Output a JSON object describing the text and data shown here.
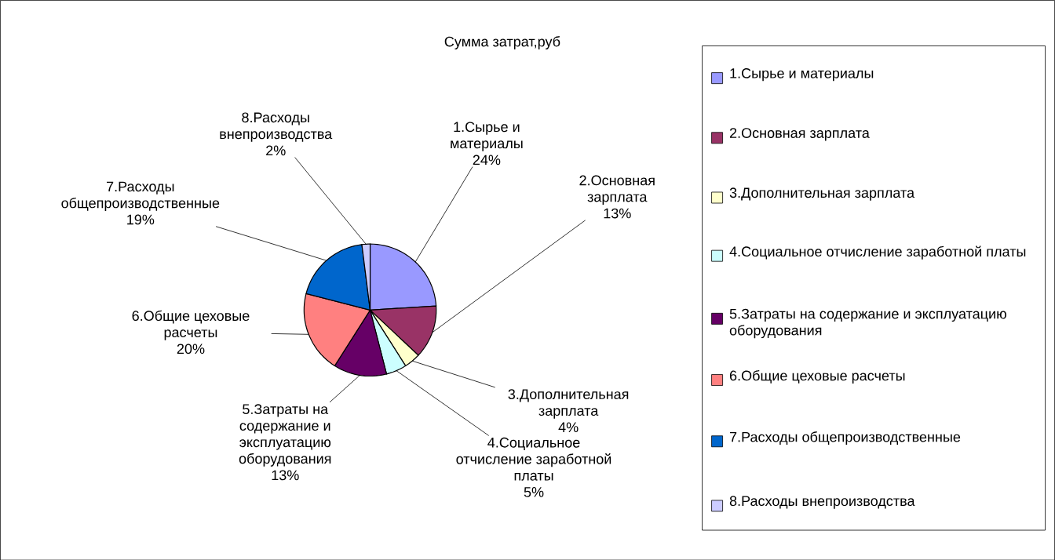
{
  "chart_data": {
    "type": "pie",
    "title": "Сумма затрат,руб",
    "categories": [
      "1.Сырье и материалы",
      "2.Основная зарплата",
      "3.Дополнительная зарплата",
      "4.Социальное отчисление заработной платы",
      "5.Затраты на содержание и эксплуатацию оборудования",
      "6.Общие цеховые расчеты",
      "7.Расходы общепроизводственные",
      "8.Расходы внепроизводства"
    ],
    "values": [
      24,
      13,
      4,
      5,
      13,
      20,
      19,
      2
    ],
    "value_labels": [
      "24%",
      "13%",
      "4%",
      "5%",
      "13%",
      "20%",
      "19%",
      "2%"
    ],
    "colors": [
      "#9999ff",
      "#993366",
      "#ffffcc",
      "#ccffff",
      "#660066",
      "#ff8080",
      "#0066cc",
      "#ccccff"
    ],
    "legend": "right"
  }
}
